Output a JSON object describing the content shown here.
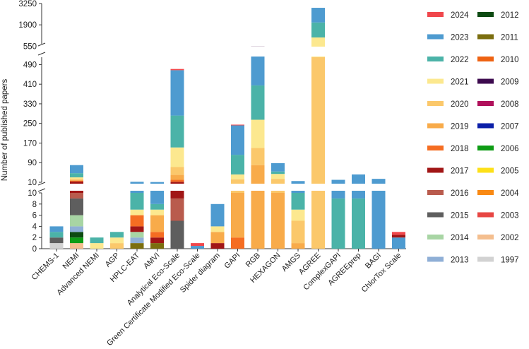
{
  "chart_data": {
    "type": "bar",
    "stacked": true,
    "ylabel": "Number of published papers",
    "axis_segments": [
      {
        "name": "lower",
        "ylim": [
          0,
          10
        ],
        "ticks": [
          0,
          2,
          4,
          6,
          8,
          10
        ]
      },
      {
        "name": "middle",
        "ylim": [
          10,
          520
        ],
        "ticks": [
          10,
          90,
          170,
          250,
          330,
          410,
          490
        ]
      },
      {
        "name": "upper",
        "ylim": [
          520,
          3250
        ],
        "ticks": [
          550,
          1900,
          3250
        ]
      }
    ],
    "categories": [
      "CHEMS-1",
      "NEMI",
      "Advanced NEMI",
      "AGP",
      "HPLC-EAT",
      "AMVI",
      "Analytical Eco-Scale",
      "Green Certificate Modified Eco-Scale",
      "Spider diagram",
      "GAPI",
      "RGB",
      "HEXAGON",
      "AMGS",
      "AGREE",
      "ComplexGAPI",
      "AGREEprep",
      "BAGI",
      "ChlorTox Scale"
    ],
    "legend": [
      {
        "label": "2024",
        "color": "#f0474c"
      },
      {
        "label": "2023",
        "color": "#4e9bd0"
      },
      {
        "label": "2022",
        "color": "#4bb3a8"
      },
      {
        "label": "2021",
        "color": "#fce88f"
      },
      {
        "label": "2020",
        "color": "#fbc86b"
      },
      {
        "label": "2019",
        "color": "#f8ab4a"
      },
      {
        "label": "2018",
        "color": "#f56d22"
      },
      {
        "label": "2017",
        "color": "#a11616"
      },
      {
        "label": "2016",
        "color": "#b95b4d"
      },
      {
        "label": "2015",
        "color": "#5e5e5e"
      },
      {
        "label": "2014",
        "color": "#a8d5a4"
      },
      {
        "label": "2013",
        "color": "#8fafd6"
      },
      {
        "label": "2012",
        "color": "#0d4a12"
      },
      {
        "label": "2011",
        "color": "#7b6e0f"
      },
      {
        "label": "2010",
        "color": "#ee6212"
      },
      {
        "label": "2009",
        "color": "#3c0a4e"
      },
      {
        "label": "2008",
        "color": "#b0105b"
      },
      {
        "label": "2007",
        "color": "#0b1fa8"
      },
      {
        "label": "2006",
        "color": "#0e9c15"
      },
      {
        "label": "2005",
        "color": "#fde019"
      },
      {
        "label": "2004",
        "color": "#f98913"
      },
      {
        "label": "2003",
        "color": "#e74643"
      },
      {
        "label": "2002",
        "color": "#f4be8e"
      },
      {
        "label": "1997",
        "color": "#d2d2d2"
      }
    ],
    "stacks": [
      {
        "category": "CHEMS-1",
        "segments": [
          {
            "year": "1997",
            "value": 1
          },
          {
            "year": "2015",
            "value": 1
          },
          {
            "year": "2022",
            "value": 1
          },
          {
            "year": "2023",
            "value": 1
          }
        ]
      },
      {
        "category": "NEMI",
        "segments": [
          {
            "year": "2002",
            "value": 1
          },
          {
            "year": "2006",
            "value": 1
          },
          {
            "year": "2012",
            "value": 1
          },
          {
            "year": "2013",
            "value": 1
          },
          {
            "year": "2014",
            "value": 2
          },
          {
            "year": "2015",
            "value": 3
          },
          {
            "year": "2016",
            "value": 1
          },
          {
            "year": "2017",
            "value": 3
          },
          {
            "year": "2018",
            "value": 3
          },
          {
            "year": "2019",
            "value": 3
          },
          {
            "year": "2020",
            "value": 5
          },
          {
            "year": "2021",
            "value": 6
          },
          {
            "year": "2022",
            "value": 17
          },
          {
            "year": "2023",
            "value": 33
          }
        ]
      },
      {
        "category": "Advanced NEMI",
        "segments": [
          {
            "year": "2021",
            "value": 1
          },
          {
            "year": "2022",
            "value": 1
          }
        ]
      },
      {
        "category": "AGP",
        "segments": [
          {
            "year": "2020",
            "value": 1
          },
          {
            "year": "2021",
            "value": 1
          },
          {
            "year": "2022",
            "value": 1
          }
        ]
      },
      {
        "category": "HPLC-EAT",
        "segments": [
          {
            "year": "2011",
            "value": 1
          },
          {
            "year": "2013",
            "value": 1
          },
          {
            "year": "2014",
            "value": 1
          },
          {
            "year": "2017",
            "value": 1
          },
          {
            "year": "2018",
            "value": 2
          },
          {
            "year": "2021",
            "value": 1
          },
          {
            "year": "2022",
            "value": 3
          },
          {
            "year": "2023",
            "value": 2
          }
        ]
      },
      {
        "category": "AMVI",
        "segments": [
          {
            "year": "2011",
            "value": 1
          },
          {
            "year": "2017",
            "value": 1
          },
          {
            "year": "2018",
            "value": 1
          },
          {
            "year": "2019",
            "value": 3
          },
          {
            "year": "2021",
            "value": 1
          },
          {
            "year": "2022",
            "value": 1
          },
          {
            "year": "2023",
            "value": 3
          }
        ]
      },
      {
        "category": "Analytical Eco-Scale",
        "segments": [
          {
            "year": "2015",
            "value": 5
          },
          {
            "year": "2016",
            "value": 4
          },
          {
            "year": "2017",
            "value": 3
          },
          {
            "year": "2018",
            "value": 8
          },
          {
            "year": "2019",
            "value": 20
          },
          {
            "year": "2020",
            "value": 32
          },
          {
            "year": "2021",
            "value": 80
          },
          {
            "year": "2022",
            "value": 130
          },
          {
            "year": "2023",
            "value": 185
          },
          {
            "year": "2024",
            "value": 5
          }
        ]
      },
      {
        "category": "Green Certificate Modified Eco-Scale",
        "segments": [
          {
            "year": "2023",
            "value": 0.5
          },
          {
            "year": "2024",
            "value": 0.5
          }
        ]
      },
      {
        "category": "Spider diagram",
        "segments": [
          {
            "year": "2017",
            "value": 1
          },
          {
            "year": "2019",
            "value": 2
          },
          {
            "year": "2021",
            "value": 1
          },
          {
            "year": "2023",
            "value": 4
          }
        ]
      },
      {
        "category": "GAPI",
        "segments": [
          {
            "year": "2018",
            "value": 2
          },
          {
            "year": "2019",
            "value": 8
          },
          {
            "year": "2020",
            "value": 12
          },
          {
            "year": "2021",
            "value": 20
          },
          {
            "year": "2022",
            "value": 80
          },
          {
            "year": "2023",
            "value": 120
          },
          {
            "year": "2024",
            "value": 3
          }
        ]
      },
      {
        "category": "RGB",
        "segments": [
          {
            "year": "2019",
            "value": 80
          },
          {
            "year": "2020",
            "value": 70
          },
          {
            "year": "2021",
            "value": 115
          },
          {
            "year": "2022",
            "value": 140
          },
          {
            "year": "2023",
            "value": 125
          },
          {
            "year": "2024",
            "value": 6
          }
        ]
      },
      {
        "category": "HEXAGON",
        "segments": [
          {
            "year": "2019",
            "value": 10
          },
          {
            "year": "2020",
            "value": 14
          },
          {
            "year": "2021",
            "value": 20
          },
          {
            "year": "2022",
            "value": 10
          },
          {
            "year": "2023",
            "value": 34
          }
        ]
      },
      {
        "category": "AMGS",
        "segments": [
          {
            "year": "2019",
            "value": 1
          },
          {
            "year": "2020",
            "value": 4
          },
          {
            "year": "2021",
            "value": 2
          },
          {
            "year": "2022",
            "value": 3
          },
          {
            "year": "2023",
            "value": 5
          }
        ]
      },
      {
        "category": "AGREE",
        "segments": [
          {
            "year": "2020",
            "value": 520
          },
          {
            "year": "2021",
            "value": 580
          },
          {
            "year": "2022",
            "value": 950
          },
          {
            "year": "2023",
            "value": 930
          }
        ]
      },
      {
        "category": "ComplexGAPI",
        "segments": [
          {
            "year": "2022",
            "value": 9
          },
          {
            "year": "2023",
            "value": 11
          }
        ]
      },
      {
        "category": "AGREEprep",
        "segments": [
          {
            "year": "2022",
            "value": 9
          },
          {
            "year": "2023",
            "value": 33
          }
        ]
      },
      {
        "category": "BAGI",
        "segments": [
          {
            "year": "2023",
            "value": 24
          }
        ]
      },
      {
        "category": "ChlorTox Scale",
        "segments": [
          {
            "year": "2023",
            "value": 2
          },
          {
            "year": "2017",
            "value": 0.5
          },
          {
            "year": "2024",
            "value": 0.5
          }
        ]
      }
    ]
  }
}
